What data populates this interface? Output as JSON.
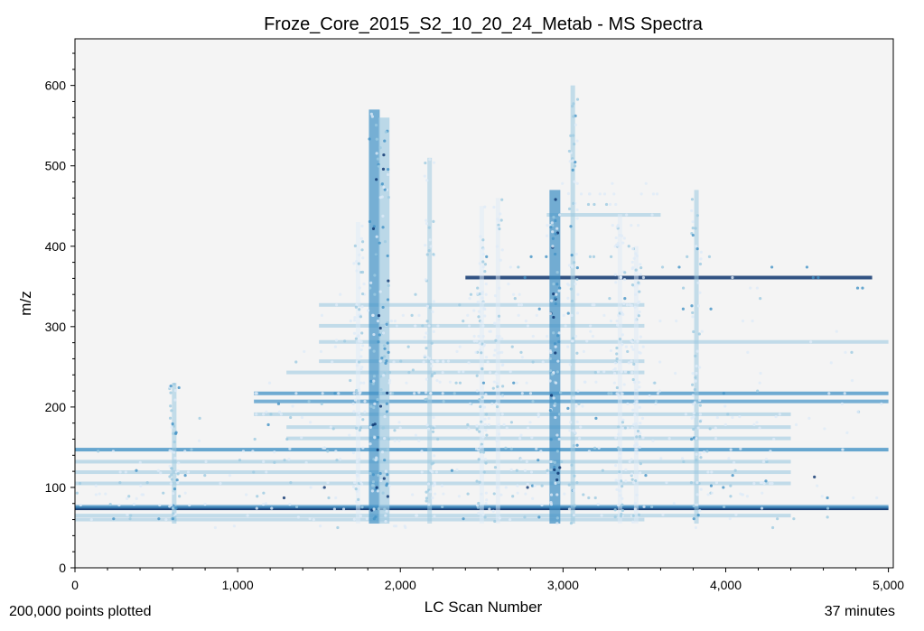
{
  "chart_data": {
    "type": "scatter",
    "title": "Froze_Core_2015_S2_10_20_24_Metab - MS Spectra",
    "xlabel": "LC Scan Number",
    "ylabel": "m/z",
    "xlim": [
      0,
      5030
    ],
    "ylim": [
      0,
      658
    ],
    "x_ticks": [
      0,
      1000,
      2000,
      3000,
      4000,
      5000
    ],
    "x_tick_labels": [
      "0",
      "1,000",
      "2,000",
      "3,000",
      "4,000",
      "5,000"
    ],
    "y_ticks": [
      0,
      100,
      200,
      300,
      400,
      500,
      600
    ],
    "y_tick_labels": [
      "0",
      "100",
      "200",
      "300",
      "400",
      "500",
      "600"
    ],
    "colormap": [
      "#deebf7",
      "#9ecae1",
      "#4292c6",
      "#08306b"
    ],
    "background": "#f4f4f4",
    "grid": false,
    "horizontal_bands": [
      {
        "mz": 74,
        "x_from": 0,
        "x_to": 5000,
        "intensity": 0.95
      },
      {
        "mz": 76,
        "x_from": 0,
        "x_to": 5000,
        "intensity": 0.55
      },
      {
        "mz": 147,
        "x_from": 0,
        "x_to": 5000,
        "intensity": 0.7
      },
      {
        "mz": 132,
        "x_from": 0,
        "x_to": 4400,
        "intensity": 0.35
      },
      {
        "mz": 119,
        "x_from": 0,
        "x_to": 4400,
        "intensity": 0.3
      },
      {
        "mz": 105,
        "x_from": 0,
        "x_to": 4400,
        "intensity": 0.3
      },
      {
        "mz": 65,
        "x_from": 0,
        "x_to": 4400,
        "intensity": 0.3
      },
      {
        "mz": 60,
        "x_from": 0,
        "x_to": 3500,
        "intensity": 0.25
      },
      {
        "mz": 207,
        "x_from": 1100,
        "x_to": 5000,
        "intensity": 0.5
      },
      {
        "mz": 217,
        "x_from": 1100,
        "x_to": 5000,
        "intensity": 0.6
      },
      {
        "mz": 191,
        "x_from": 1100,
        "x_to": 4400,
        "intensity": 0.35
      },
      {
        "mz": 175,
        "x_from": 1300,
        "x_to": 4400,
        "intensity": 0.3
      },
      {
        "mz": 161,
        "x_from": 1300,
        "x_to": 4400,
        "intensity": 0.3
      },
      {
        "mz": 281,
        "x_from": 1500,
        "x_to": 5000,
        "intensity": 0.3
      },
      {
        "mz": 361,
        "x_from": 2400,
        "x_to": 4900,
        "intensity": 0.75
      },
      {
        "mz": 327,
        "x_from": 1500,
        "x_to": 3500,
        "intensity": 0.3
      },
      {
        "mz": 301,
        "x_from": 1500,
        "x_to": 3500,
        "intensity": 0.3
      },
      {
        "mz": 257,
        "x_from": 1500,
        "x_to": 3500,
        "intensity": 0.3
      },
      {
        "mz": 243,
        "x_from": 1300,
        "x_to": 3500,
        "intensity": 0.3
      },
      {
        "mz": 439,
        "x_from": 2900,
        "x_to": 3600,
        "intensity": 0.3
      }
    ],
    "vertical_bands": [
      {
        "scan": 1840,
        "mz_from": 55,
        "mz_to": 570,
        "intensity": 0.9
      },
      {
        "scan": 1900,
        "mz_from": 55,
        "mz_to": 560,
        "intensity": 0.8
      },
      {
        "scan": 2950,
        "mz_from": 55,
        "mz_to": 470,
        "intensity": 0.95
      },
      {
        "scan": 3060,
        "mz_from": 55,
        "mz_to": 600,
        "intensity": 0.6
      },
      {
        "scan": 3820,
        "mz_from": 55,
        "mz_to": 470,
        "intensity": 0.55
      },
      {
        "scan": 610,
        "mz_from": 55,
        "mz_to": 230,
        "intensity": 0.6
      },
      {
        "scan": 1740,
        "mz_from": 55,
        "mz_to": 430,
        "intensity": 0.4
      },
      {
        "scan": 2180,
        "mz_from": 55,
        "mz_to": 510,
        "intensity": 0.45
      },
      {
        "scan": 2500,
        "mz_from": 55,
        "mz_to": 450,
        "intensity": 0.4
      },
      {
        "scan": 2600,
        "mz_from": 55,
        "mz_to": 460,
        "intensity": 0.35
      },
      {
        "scan": 3350,
        "mz_from": 55,
        "mz_to": 440,
        "intensity": 0.35
      },
      {
        "scan": 3450,
        "mz_from": 55,
        "mz_to": 400,
        "intensity": 0.35
      }
    ],
    "points_plotted": 200000
  },
  "footer": {
    "left": "200,000 points plotted",
    "right": "37 minutes"
  }
}
